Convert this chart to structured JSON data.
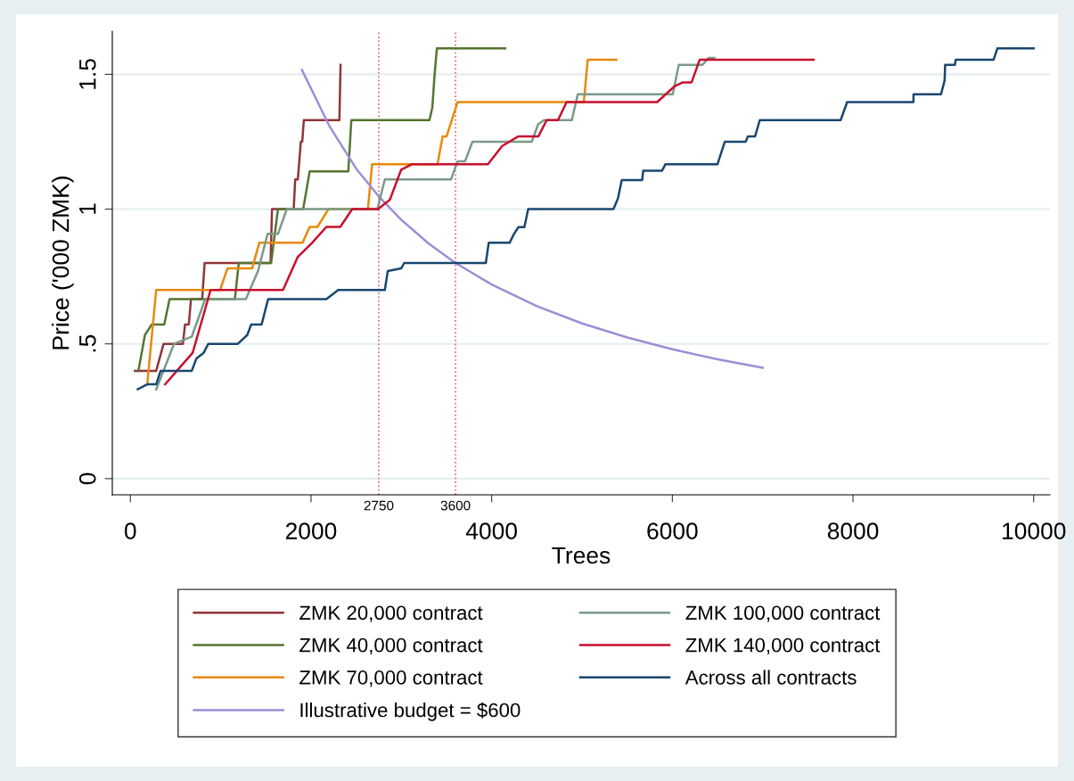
{
  "chart_data": {
    "type": "line",
    "xlabel": "Trees",
    "ylabel": "Price ('000 ZMK)",
    "xlim": [
      -200,
      10180
    ],
    "ylim": [
      -0.06,
      1.66
    ],
    "xticks": [
      0,
      2000,
      4000,
      6000,
      8000,
      10000
    ],
    "yticks": [
      0,
      {
        "value": 0.5,
        "label": ".5"
      },
      1,
      1.5
    ],
    "grid": "y",
    "legend": "bottom",
    "marker": "none",
    "line_style": "solid",
    "ref_lines": [
      {
        "axis": "x",
        "value": 2750,
        "label": "2750",
        "color": "#e0607a",
        "line_style": "dotted"
      },
      {
        "axis": "x",
        "value": 3600,
        "label": "3600",
        "color": "#e0607a",
        "line_style": "dotted"
      }
    ],
    "series": [
      {
        "name": "ZMK 20,000 contract",
        "color": "#90353b",
        "x": [
          50,
          286,
          368,
          582,
          605,
          647,
          671,
          795,
          822,
          1552,
          1568,
          1808,
          1825,
          1854,
          1887,
          1903,
          1920,
          2314,
          2327
        ],
        "values": [
          0.4,
          0.4,
          0.5,
          0.5,
          0.572,
          0.572,
          0.666,
          0.666,
          0.8,
          0.8,
          1.0,
          1.0,
          1.11,
          1.11,
          1.25,
          1.25,
          1.33,
          1.33,
          1.535
        ]
      },
      {
        "name": "ZMK 40,000 contract",
        "color": "#55752f",
        "x": [
          89,
          161,
          237,
          375,
          434,
          1157,
          1200,
          1558,
          1634,
          1913,
          1985,
          2413,
          2446,
          3311,
          3343,
          3366,
          3393,
          4149
        ],
        "values": [
          0.4,
          0.533,
          0.572,
          0.572,
          0.666,
          0.666,
          0.8,
          0.8,
          1.0,
          1.0,
          1.14,
          1.14,
          1.33,
          1.33,
          1.377,
          1.49,
          1.596,
          1.596
        ]
      },
      {
        "name": "ZMK 70,000 contract",
        "color": "#e8890c",
        "x": [
          187,
          286,
          993,
          1075,
          1348,
          1427,
          1907,
          1985,
          2071,
          2193,
          2630,
          2676,
          3400,
          3457,
          3501,
          3622,
          5020,
          5063,
          5380
        ],
        "values": [
          0.35,
          0.7,
          0.7,
          0.78,
          0.78,
          0.875,
          0.875,
          0.934,
          0.934,
          1.0,
          1.0,
          1.166,
          1.166,
          1.27,
          1.27,
          1.397,
          1.397,
          1.554,
          1.554
        ]
      },
      {
        "name": "Illustrative budget = $600",
        "color": "#9a8fd6",
        "x": [
          1900,
          2200,
          2500,
          2750,
          3000,
          3300,
          3600,
          4000,
          4500,
          5000,
          5500,
          6000,
          6500,
          7000
        ],
        "values": [
          1.516,
          1.31,
          1.15,
          1.047,
          0.96,
          0.873,
          0.8,
          0.72,
          0.64,
          0.576,
          0.524,
          0.48,
          0.443,
          0.411
        ]
      },
      {
        "name": "ZMK 100,000 contract",
        "color": "#7a9a88",
        "x": [
          286,
          483,
          680,
          828,
          1279,
          1413,
          1519,
          1634,
          1732,
          2735,
          2817,
          3550,
          3622,
          3705,
          3787,
          4443,
          4515,
          4580,
          4887,
          4953,
          6005,
          6071,
          6334,
          6400,
          6465
        ],
        "values": [
          0.331,
          0.5,
          0.527,
          0.666,
          0.666,
          0.77,
          0.908,
          0.908,
          1.0,
          1.0,
          1.11,
          1.11,
          1.177,
          1.177,
          1.25,
          1.25,
          1.315,
          1.33,
          1.33,
          1.426,
          1.426,
          1.535,
          1.535,
          1.561,
          1.561
        ]
      },
      {
        "name": "ZMK 140,000 contract",
        "color": "#c8102e",
        "x": [
          385,
          690,
          888,
          1690,
          1854,
          2012,
          2170,
          2324,
          2456,
          2742,
          2873,
          2998,
          3113,
          3958,
          4116,
          4296,
          4517,
          4609,
          4734,
          4829,
          5832,
          6022,
          6114,
          6213,
          6302,
          7564
        ],
        "values": [
          0.35,
          0.467,
          0.7,
          0.7,
          0.823,
          0.875,
          0.934,
          0.934,
          1.0,
          1.0,
          1.035,
          1.146,
          1.166,
          1.166,
          1.234,
          1.27,
          1.27,
          1.33,
          1.33,
          1.397,
          1.397,
          1.455,
          1.47,
          1.47,
          1.554,
          1.554
        ]
      },
      {
        "name": "Across all contracts",
        "color": "#1a476f",
        "x": [
          82,
          187,
          286,
          335,
          680,
          730,
          812,
          862,
          1190,
          1294,
          1338,
          1453,
          1525,
          2170,
          2301,
          2817,
          2850,
          2998,
          3031,
          3935,
          3967,
          4198,
          4247,
          4296,
          4362,
          4404,
          5348,
          5398,
          5440,
          5667,
          5677,
          5884,
          5923,
          6499,
          6581,
          6811,
          6837,
          6916,
          6968,
          7863,
          7935,
          8669,
          8670,
          8974,
          9014,
          9020,
          9128,
          9137,
          9556,
          9598,
          10000
        ],
        "values": [
          0.332,
          0.35,
          0.35,
          0.4,
          0.4,
          0.445,
          0.467,
          0.5,
          0.5,
          0.533,
          0.572,
          0.572,
          0.666,
          0.666,
          0.7,
          0.7,
          0.77,
          0.78,
          0.8,
          0.8,
          0.875,
          0.875,
          0.908,
          0.933,
          0.933,
          1.0,
          1.0,
          1.04,
          1.108,
          1.108,
          1.142,
          1.142,
          1.166,
          1.166,
          1.25,
          1.25,
          1.27,
          1.27,
          1.33,
          1.33,
          1.397,
          1.397,
          1.426,
          1.426,
          1.477,
          1.535,
          1.535,
          1.554,
          1.554,
          1.596,
          1.596
        ]
      }
    ]
  }
}
